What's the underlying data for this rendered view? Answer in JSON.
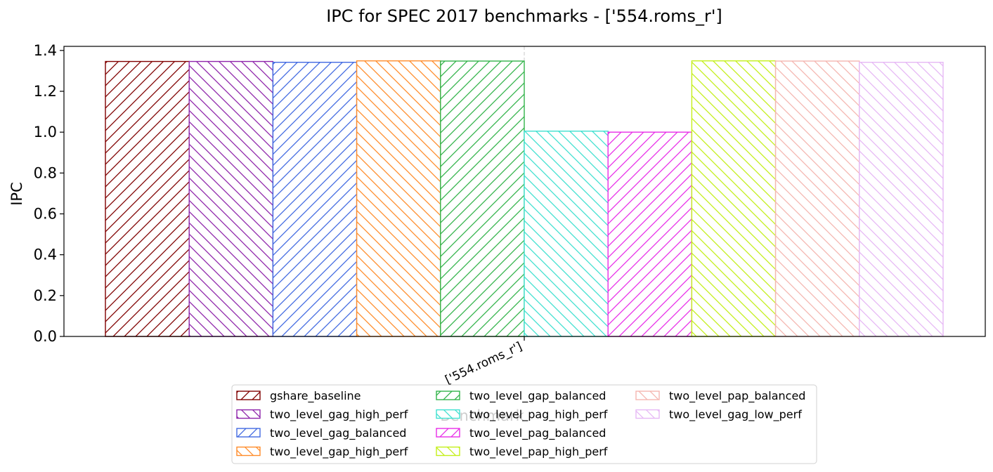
{
  "chart_data": {
    "type": "bar",
    "title": "IPC for SPEC 2017 benchmarks - ['554.roms_r']",
    "xlabel": "Benchmark",
    "ylabel": "IPC",
    "categories": [
      "['554.roms_r']"
    ],
    "ylim": [
      0,
      1.42
    ],
    "yticks": [
      "0.0",
      "0.2",
      "0.4",
      "0.6",
      "0.8",
      "1.0",
      "1.2",
      "1.4"
    ],
    "grid": "x-only, dashed",
    "legend_position": "lower center, below axes",
    "series": [
      {
        "name": "gshare_baseline",
        "values": [
          1.346
        ],
        "color": "#800000",
        "hatch": "fwd"
      },
      {
        "name": "two_level_gag_high_perf",
        "values": [
          1.346
        ],
        "color": "#8e24aa",
        "hatch": "back"
      },
      {
        "name": "two_level_gag_balanced",
        "values": [
          1.342
        ],
        "color": "#4169e1",
        "hatch": "fwd"
      },
      {
        "name": "two_level_gap_high_perf",
        "values": [
          1.349
        ],
        "color": "#ff8c2a",
        "hatch": "back"
      },
      {
        "name": "two_level_gap_balanced",
        "values": [
          1.348
        ],
        "color": "#32b34a",
        "hatch": "fwd"
      },
      {
        "name": "two_level_pag_high_perf",
        "values": [
          1.005
        ],
        "color": "#40e0d0",
        "hatch": "back"
      },
      {
        "name": "two_level_pag_balanced",
        "values": [
          1.0
        ],
        "color": "#e82ee8",
        "hatch": "fwd"
      },
      {
        "name": "two_level_pap_high_perf",
        "values": [
          1.349
        ],
        "color": "#c4ef1a",
        "hatch": "back"
      },
      {
        "name": "two_level_pap_balanced",
        "values": [
          1.348
        ],
        "color": "#f4b6b0",
        "hatch": "back"
      },
      {
        "name": "two_level_gag_low_perf",
        "values": [
          1.342
        ],
        "color": "#e6b8f5",
        "hatch": "back"
      }
    ]
  }
}
